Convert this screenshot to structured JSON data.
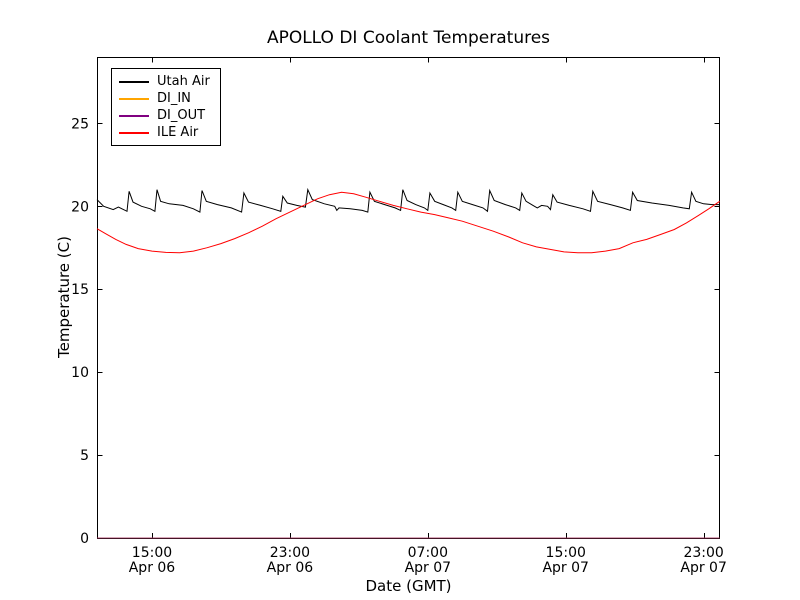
{
  "figure": {
    "background": "#ffffff",
    "axes_background": "#ffffff",
    "axis_color": "#000000"
  },
  "chart_data": {
    "type": "line",
    "title": "APOLLO DI Coolant Temperatures",
    "xlabel": "Date (GMT)",
    "ylabel": "Temperature (C)",
    "x_unit_note": "hours since Apr 06 00:00 GMT",
    "xlim": [
      11.81,
      47.95
    ],
    "ylim": [
      0,
      29
    ],
    "grid": false,
    "legend_position": "upper left",
    "x_ticks": [
      {
        "value": 15,
        "time": "15:00",
        "date": "Apr 06"
      },
      {
        "value": 23,
        "time": "23:00",
        "date": "Apr 06"
      },
      {
        "value": 31,
        "time": "07:00",
        "date": "Apr 07"
      },
      {
        "value": 39,
        "time": "15:00",
        "date": "Apr 07"
      },
      {
        "value": 47,
        "time": "23:00",
        "date": "Apr 07"
      }
    ],
    "y_ticks": [
      0,
      5,
      10,
      15,
      20,
      25
    ],
    "series": [
      {
        "name": "Utah Air",
        "color": "#000000",
        "points": [
          [
            11.81,
            20.4
          ],
          [
            12.2,
            20.0
          ],
          [
            12.75,
            19.8
          ],
          [
            13.05,
            19.95
          ],
          [
            13.35,
            19.8
          ],
          [
            13.55,
            19.7
          ],
          [
            13.67,
            20.9
          ],
          [
            13.9,
            20.25
          ],
          [
            14.4,
            20.0
          ],
          [
            14.9,
            19.85
          ],
          [
            15.17,
            19.7
          ],
          [
            15.29,
            21.0
          ],
          [
            15.5,
            20.3
          ],
          [
            16.0,
            20.15
          ],
          [
            16.8,
            20.05
          ],
          [
            17.4,
            19.85
          ],
          [
            17.78,
            19.65
          ],
          [
            17.9,
            20.95
          ],
          [
            18.15,
            20.3
          ],
          [
            18.8,
            20.1
          ],
          [
            19.6,
            19.9
          ],
          [
            20.2,
            19.65
          ],
          [
            20.33,
            20.8
          ],
          [
            20.6,
            20.25
          ],
          [
            21.3,
            20.05
          ],
          [
            22.0,
            19.85
          ],
          [
            22.47,
            19.7
          ],
          [
            22.59,
            20.6
          ],
          [
            22.85,
            20.2
          ],
          [
            23.4,
            20.05
          ],
          [
            23.9,
            19.95
          ],
          [
            24.04,
            21.0
          ],
          [
            24.3,
            20.4
          ],
          [
            25.0,
            20.15
          ],
          [
            25.6,
            20.0
          ],
          [
            25.72,
            19.75
          ],
          [
            25.85,
            19.9
          ],
          [
            26.5,
            19.85
          ],
          [
            27.2,
            19.75
          ],
          [
            27.52,
            19.65
          ],
          [
            27.64,
            20.85
          ],
          [
            27.9,
            20.3
          ],
          [
            28.5,
            20.1
          ],
          [
            29.1,
            19.9
          ],
          [
            29.42,
            19.75
          ],
          [
            29.55,
            21.0
          ],
          [
            29.8,
            20.35
          ],
          [
            30.3,
            20.1
          ],
          [
            30.8,
            19.9
          ],
          [
            31.0,
            19.75
          ],
          [
            31.12,
            20.8
          ],
          [
            31.4,
            20.3
          ],
          [
            31.9,
            20.1
          ],
          [
            32.4,
            19.9
          ],
          [
            32.62,
            19.75
          ],
          [
            32.74,
            20.85
          ],
          [
            33.0,
            20.3
          ],
          [
            33.6,
            20.1
          ],
          [
            34.2,
            19.9
          ],
          [
            34.46,
            19.7
          ],
          [
            34.59,
            20.95
          ],
          [
            34.85,
            20.35
          ],
          [
            35.5,
            20.1
          ],
          [
            36.1,
            19.9
          ],
          [
            36.33,
            19.75
          ],
          [
            36.45,
            20.8
          ],
          [
            36.7,
            20.3
          ],
          [
            37.1,
            20.05
          ],
          [
            37.35,
            19.9
          ],
          [
            37.6,
            20.05
          ],
          [
            37.95,
            20.0
          ],
          [
            38.12,
            19.8
          ],
          [
            38.25,
            20.7
          ],
          [
            38.5,
            20.25
          ],
          [
            39.2,
            20.05
          ],
          [
            40.0,
            19.85
          ],
          [
            40.44,
            19.7
          ],
          [
            40.57,
            20.9
          ],
          [
            40.85,
            20.3
          ],
          [
            41.6,
            20.1
          ],
          [
            42.3,
            19.9
          ],
          [
            42.75,
            19.75
          ],
          [
            42.88,
            20.85
          ],
          [
            43.15,
            20.35
          ],
          [
            44.0,
            20.2
          ],
          [
            45.0,
            20.05
          ],
          [
            45.8,
            19.9
          ],
          [
            46.17,
            19.85
          ],
          [
            46.3,
            20.85
          ],
          [
            46.55,
            20.3
          ],
          [
            47.0,
            20.15
          ],
          [
            47.5,
            20.1
          ],
          [
            47.93,
            20.1
          ]
        ]
      },
      {
        "name": "DI_IN",
        "color": "#ffa500",
        "points": [
          [
            11.81,
            0
          ],
          [
            47.93,
            0
          ]
        ]
      },
      {
        "name": "DI_OUT",
        "color": "#800080",
        "points": [
          [
            11.81,
            0
          ],
          [
            47.93,
            0
          ]
        ]
      },
      {
        "name": "ILE Air",
        "color": "#ff0000",
        "points": [
          [
            11.81,
            18.65
          ],
          [
            12.3,
            18.35
          ],
          [
            12.9,
            18.0
          ],
          [
            13.5,
            17.7
          ],
          [
            14.2,
            17.45
          ],
          [
            15.0,
            17.3
          ],
          [
            15.8,
            17.22
          ],
          [
            16.6,
            17.2
          ],
          [
            17.4,
            17.3
          ],
          [
            18.2,
            17.5
          ],
          [
            19.0,
            17.75
          ],
          [
            19.8,
            18.05
          ],
          [
            20.6,
            18.4
          ],
          [
            21.4,
            18.8
          ],
          [
            22.2,
            19.25
          ],
          [
            23.0,
            19.65
          ],
          [
            23.8,
            20.05
          ],
          [
            24.6,
            20.45
          ],
          [
            25.3,
            20.7
          ],
          [
            26.0,
            20.85
          ],
          [
            26.7,
            20.75
          ],
          [
            27.4,
            20.55
          ],
          [
            28.2,
            20.3
          ],
          [
            29.0,
            20.05
          ],
          [
            29.8,
            19.85
          ],
          [
            30.6,
            19.65
          ],
          [
            31.4,
            19.5
          ],
          [
            32.2,
            19.3
          ],
          [
            33.0,
            19.1
          ],
          [
            33.9,
            18.8
          ],
          [
            34.8,
            18.5
          ],
          [
            35.7,
            18.15
          ],
          [
            36.5,
            17.8
          ],
          [
            37.3,
            17.55
          ],
          [
            38.1,
            17.4
          ],
          [
            38.9,
            17.25
          ],
          [
            39.7,
            17.2
          ],
          [
            40.5,
            17.2
          ],
          [
            41.3,
            17.3
          ],
          [
            42.1,
            17.45
          ],
          [
            42.9,
            17.8
          ],
          [
            43.7,
            18.0
          ],
          [
            44.5,
            18.3
          ],
          [
            45.3,
            18.6
          ],
          [
            46.0,
            19.0
          ],
          [
            46.7,
            19.45
          ],
          [
            47.3,
            19.85
          ],
          [
            47.93,
            20.3
          ]
        ]
      }
    ]
  }
}
